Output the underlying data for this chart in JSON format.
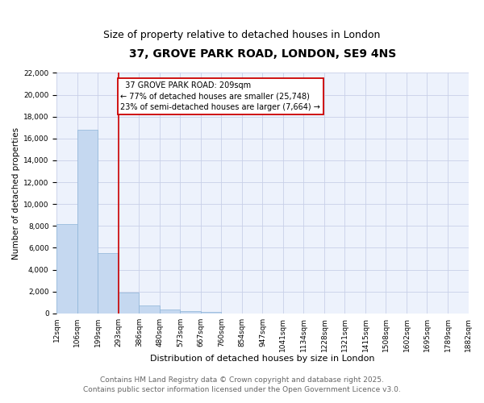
{
  "title": "37, GROVE PARK ROAD, LONDON, SE9 4NS",
  "subtitle": "Size of property relative to detached houses in London",
  "xlabel": "Distribution of detached houses by size in London",
  "ylabel": "Number of detached properties",
  "bar_values": [
    8200,
    16800,
    5500,
    1900,
    700,
    350,
    200,
    150,
    0,
    0,
    0,
    0,
    0,
    0,
    0,
    0,
    0,
    0,
    0,
    0
  ],
  "bar_labels": [
    "12sqm",
    "106sqm",
    "199sqm",
    "293sqm",
    "386sqm",
    "480sqm",
    "573sqm",
    "667sqm",
    "760sqm",
    "854sqm",
    "947sqm",
    "1041sqm",
    "1134sqm",
    "1228sqm",
    "1321sqm",
    "1415sqm",
    "1508sqm",
    "1602sqm",
    "1695sqm",
    "1789sqm",
    "1882sqm"
  ],
  "bar_color": "#c5d8f0",
  "bar_edge_color": "#8cb4d8",
  "vline_color": "#cc0000",
  "annotation_text": "  37 GROVE PARK ROAD: 209sqm\n← 77% of detached houses are smaller (25,748)\n23% of semi-detached houses are larger (7,664) →",
  "annotation_box_color": "#ffffff",
  "annotation_box_edge": "#cc0000",
  "ylim": [
    0,
    22000
  ],
  "yticks": [
    0,
    2000,
    4000,
    6000,
    8000,
    10000,
    12000,
    14000,
    16000,
    18000,
    20000,
    22000
  ],
  "footer_line1": "Contains HM Land Registry data © Crown copyright and database right 2025.",
  "footer_line2": "Contains public sector information licensed under the Open Government Licence v3.0.",
  "bg_color": "#edf2fc",
  "grid_color": "#c8d0e8",
  "title_fontsize": 10,
  "subtitle_fontsize": 9,
  "ylabel_fontsize": 7.5,
  "xlabel_fontsize": 8,
  "tick_fontsize": 6.5,
  "footer_fontsize": 6.5,
  "annot_fontsize": 7
}
